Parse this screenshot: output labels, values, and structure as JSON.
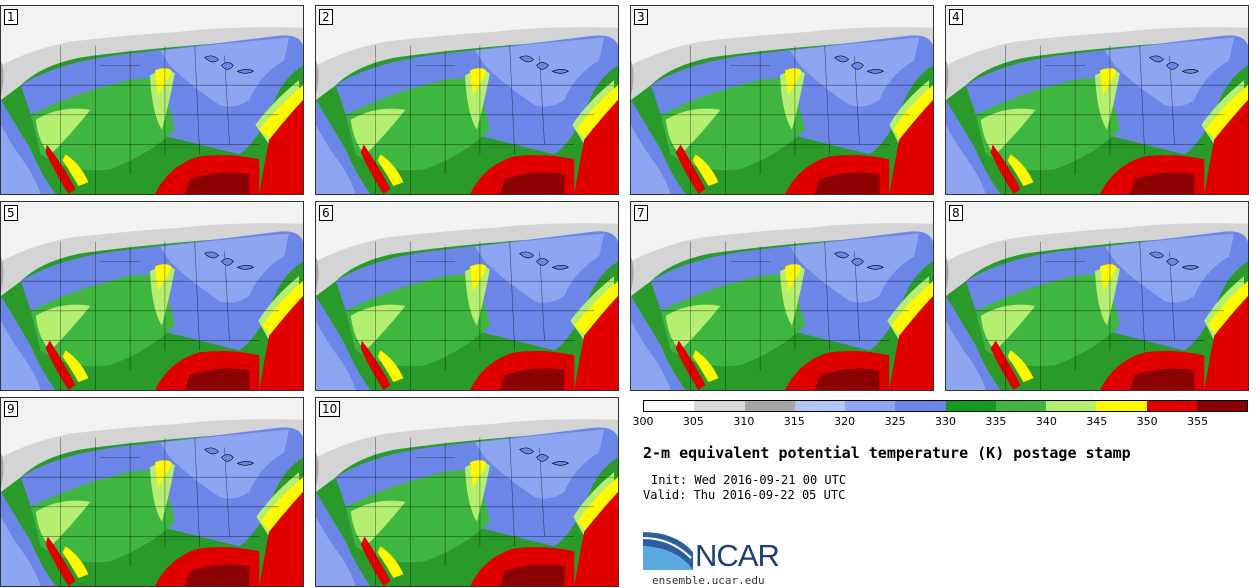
{
  "panels": [
    {
      "label": "1"
    },
    {
      "label": "2"
    },
    {
      "label": "3"
    },
    {
      "label": "4"
    },
    {
      "label": "5"
    },
    {
      "label": "6"
    },
    {
      "label": "7"
    },
    {
      "label": "8"
    },
    {
      "label": "9"
    },
    {
      "label": "10"
    }
  ],
  "colorbar": {
    "ticks": [
      "300",
      "305",
      "310",
      "315",
      "320",
      "325",
      "330",
      "335",
      "340",
      "345",
      "350",
      "355"
    ],
    "colors": [
      "#ffffff",
      "#d9d9d9",
      "#a6a6a6",
      "#b3c7f7",
      "#8ea6f2",
      "#6b86e6",
      "#119a1d",
      "#3fb63f",
      "#b5ef72",
      "#fffa00",
      "#e00000",
      "#8b0000"
    ]
  },
  "title": "2-m equivalent potential temperature (K) postage stamp",
  "init": "Init: Wed 2016-09-21 00 UTC",
  "valid": "Valid: Thu 2016-09-22 05 UTC",
  "logo": {
    "name": "NCAR"
  },
  "url": "ensemble.ucar.edu"
}
